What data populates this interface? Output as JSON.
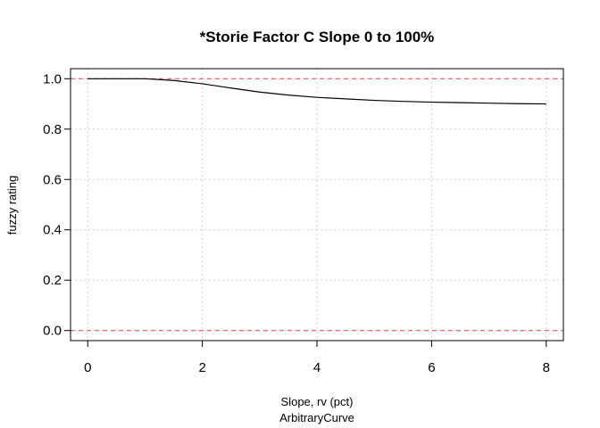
{
  "chart_data": {
    "type": "line",
    "title": "*Storie Factor C Slope 0 to 100%",
    "xlabel": "Slope, rv (pct)",
    "sublabel": "ArbitraryCurve",
    "ylabel": "fuzzy rating",
    "xlim": [
      -0.3,
      8.3
    ],
    "ylim": [
      -0.04,
      1.04
    ],
    "xticks": [
      0,
      2,
      4,
      6,
      8
    ],
    "yticks": [
      0.0,
      0.2,
      0.4,
      0.6,
      0.8,
      1.0
    ],
    "xtick_labels": [
      "0",
      "2",
      "4",
      "6",
      "8"
    ],
    "ytick_labels": [
      "0.0",
      "0.2",
      "0.4",
      "0.6",
      "0.8",
      "1.0"
    ],
    "grid": true,
    "reference_lines": [
      {
        "y": 1.0,
        "color": "#e0474c",
        "style": "dashed"
      },
      {
        "y": 0.0,
        "color": "#e0474c",
        "style": "dashed"
      }
    ],
    "series": [
      {
        "color": "#000000",
        "x": [
          0,
          0.5,
          1,
          1.5,
          2,
          2.5,
          3,
          3.5,
          4,
          4.5,
          5,
          5.5,
          6,
          6.5,
          7,
          7.5,
          8
        ],
        "y": [
          1.0,
          1.0,
          1.0,
          0.993,
          0.98,
          0.963,
          0.947,
          0.935,
          0.926,
          0.92,
          0.914,
          0.91,
          0.907,
          0.905,
          0.903,
          0.901,
          0.9
        ]
      }
    ]
  }
}
